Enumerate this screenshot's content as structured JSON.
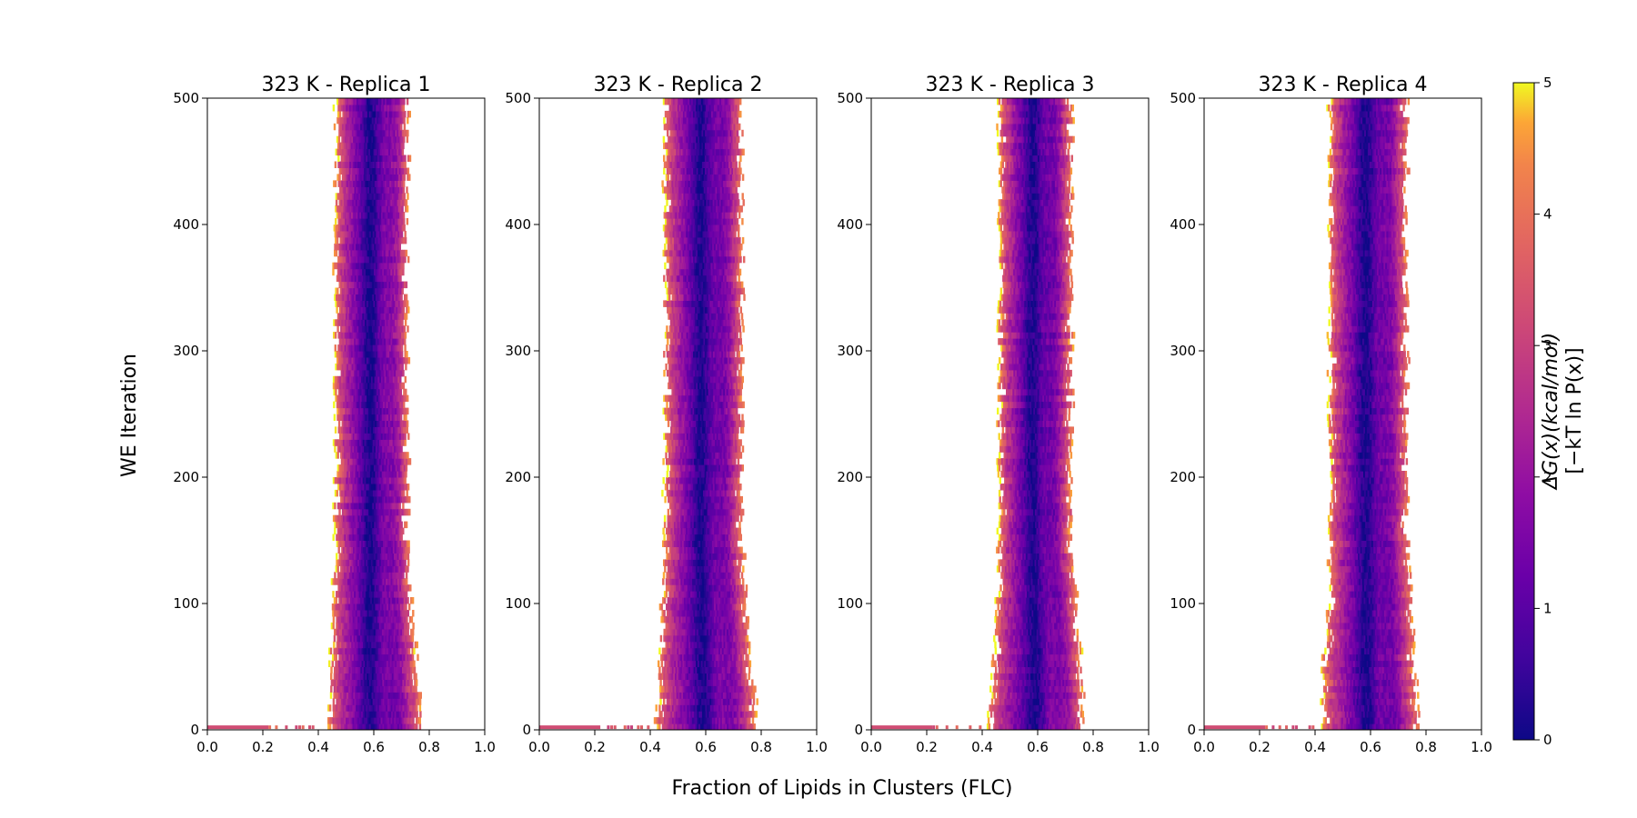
{
  "figure": {
    "ylabel": "WE Iteration",
    "xlabel": "Fraction of Lipids in Clusters (FLC)",
    "colorbar": {
      "label_line1": "ΔG(x)(kcal/mol)",
      "label_line2": "[−kT ln P(x)]",
      "ticks": [
        "0",
        "1",
        "2",
        "3",
        "4",
        "5"
      ],
      "range": [
        0,
        5
      ],
      "colormap": "plasma"
    }
  },
  "chart_data": [
    {
      "type": "heatmap",
      "title": "323 K - Replica 1",
      "xlim": [
        0,
        1
      ],
      "ylim": [
        0,
        500
      ],
      "x_ticks": [
        "0.0",
        "0.2",
        "0.4",
        "0.6",
        "0.8",
        "1.0"
      ],
      "y_ticks": [
        "0",
        "100",
        "200",
        "300",
        "400",
        "500"
      ],
      "band_start": {
        "left": 0.43,
        "right": 0.77,
        "peaks": [
          0.57,
          0.69
        ]
      },
      "band_end": {
        "left": 0.46,
        "right": 0.72,
        "peaks": [
          0.58,
          0.68
        ]
      },
      "initial_strip": {
        "x": [
          0.0,
          0.4
        ],
        "y": 0
      }
    },
    {
      "type": "heatmap",
      "title": "323 K - Replica 2",
      "xlim": [
        0,
        1
      ],
      "ylim": [
        0,
        500
      ],
      "x_ticks": [
        "0.0",
        "0.2",
        "0.4",
        "0.6",
        "0.8",
        "1.0"
      ],
      "y_ticks": [
        "0",
        "100",
        "200",
        "300",
        "400",
        "500"
      ],
      "band_start": {
        "left": 0.42,
        "right": 0.78,
        "peaks": [
          0.58,
          0.71
        ]
      },
      "band_end": {
        "left": 0.45,
        "right": 0.73,
        "peaks": [
          0.57,
          0.67
        ]
      },
      "initial_strip": {
        "x": [
          0.0,
          0.4
        ],
        "y": 0
      }
    },
    {
      "type": "heatmap",
      "title": "323 K - Replica 3",
      "xlim": [
        0,
        1
      ],
      "ylim": [
        0,
        500
      ],
      "x_ticks": [
        "0.0",
        "0.2",
        "0.4",
        "0.6",
        "0.8",
        "1.0"
      ],
      "y_ticks": [
        "0",
        "100",
        "200",
        "300",
        "400",
        "500"
      ],
      "band_start": {
        "left": 0.42,
        "right": 0.77,
        "peaks": [
          0.58,
          0.71
        ]
      },
      "band_end": {
        "left": 0.46,
        "right": 0.72,
        "peaks": [
          0.57,
          0.66
        ]
      },
      "initial_strip": {
        "x": [
          0.0,
          0.4
        ],
        "y": 0
      }
    },
    {
      "type": "heatmap",
      "title": "323 K - Replica 4",
      "xlim": [
        0,
        1
      ],
      "ylim": [
        0,
        500
      ],
      "x_ticks": [
        "0.0",
        "0.2",
        "0.4",
        "0.6",
        "0.8",
        "1.0"
      ],
      "y_ticks": [
        "0",
        "100",
        "200",
        "300",
        "400",
        "500"
      ],
      "band_start": {
        "left": 0.42,
        "right": 0.77,
        "peaks": [
          0.57,
          0.69
        ]
      },
      "band_end": {
        "left": 0.45,
        "right": 0.73,
        "peaks": [
          0.57,
          0.67
        ]
      },
      "initial_strip": {
        "x": [
          0.0,
          0.4
        ],
        "y": 0
      }
    }
  ]
}
